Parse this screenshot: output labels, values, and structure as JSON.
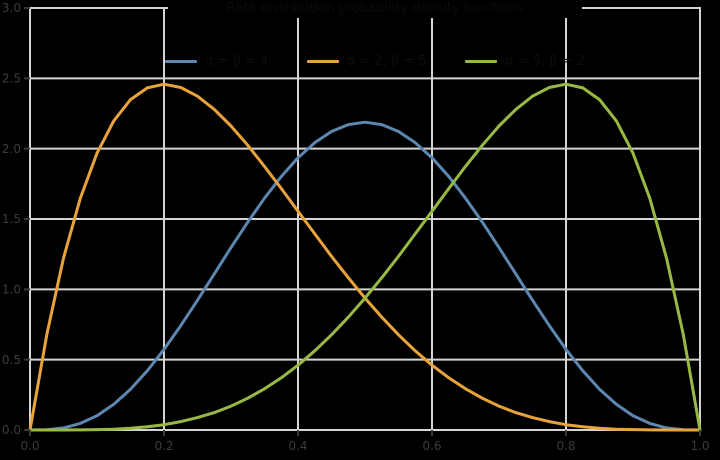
{
  "chart_data": {
    "type": "line",
    "title": "Beta distribution probability density functions",
    "xlabel": "",
    "ylabel": "",
    "xlim": [
      0,
      1
    ],
    "ylim": [
      0,
      3
    ],
    "xtick_labels": [
      "0.0",
      "0.2",
      "0.4",
      "0.6",
      "0.8",
      "1.0"
    ],
    "ytick_labels": [
      "0.0",
      "0.5",
      "1.0",
      "1.5",
      "2.0",
      "2.5",
      "3.0"
    ],
    "grid": true,
    "legend_position": "top-center",
    "colors": {
      "background": "#000000",
      "grid": "#d4d4d4",
      "border": "#d4d4d4",
      "tick": "#3b3b3b",
      "tick_label_text": "#3b3b3b",
      "title_text": "#0b0b0b",
      "legend_text": "#0d0d0d"
    },
    "x": [
      0,
      0.025,
      0.05,
      0.075,
      0.1,
      0.125,
      0.15,
      0.175,
      0.2,
      0.225,
      0.25,
      0.275,
      0.3,
      0.325,
      0.35,
      0.375,
      0.4,
      0.425,
      0.45,
      0.475,
      0.5,
      0.525,
      0.55,
      0.575,
      0.6,
      0.625,
      0.65,
      0.675,
      0.7,
      0.725,
      0.75,
      0.775,
      0.8,
      0.825,
      0.85,
      0.875,
      0.9,
      0.925,
      0.95,
      0.975,
      1
    ],
    "series": [
      {
        "name": "α = β = 4",
        "color": "#5d87b0",
        "values": [
          0,
          0.002,
          0.015,
          0.047,
          0.102,
          0.183,
          0.29,
          0.421,
          0.573,
          0.742,
          0.923,
          1.11,
          1.297,
          1.478,
          1.648,
          1.802,
          1.935,
          2.043,
          2.122,
          2.171,
          2.188,
          2.171,
          2.122,
          2.043,
          1.935,
          1.802,
          1.648,
          1.478,
          1.297,
          1.11,
          0.923,
          0.742,
          0.573,
          0.421,
          0.29,
          0.183,
          0.102,
          0.047,
          0.015,
          0.002,
          0
        ]
      },
      {
        "name": "α = 2, β = 5",
        "color": "#e8a33b",
        "values": [
          0,
          0.678,
          1.222,
          1.647,
          1.968,
          2.198,
          2.349,
          2.432,
          2.458,
          2.435,
          2.373,
          2.279,
          2.161,
          2.024,
          1.874,
          1.717,
          1.555,
          1.394,
          1.235,
          1.083,
          0.938,
          0.802,
          0.677,
          0.563,
          0.461,
          0.371,
          0.293,
          0.226,
          0.17,
          0.124,
          0.088,
          0.06,
          0.038,
          0.023,
          0.013,
          0.006,
          0.003,
          0.001,
          0,
          0,
          0
        ]
      },
      {
        "name": "α = 5, β = 2",
        "color": "#98ba44",
        "values": [
          0,
          0,
          0,
          0.001,
          0.003,
          0.006,
          0.013,
          0.023,
          0.038,
          0.06,
          0.088,
          0.124,
          0.17,
          0.226,
          0.293,
          0.371,
          0.461,
          0.563,
          0.677,
          0.802,
          0.938,
          1.083,
          1.235,
          1.394,
          1.555,
          1.717,
          1.874,
          2.024,
          2.161,
          2.279,
          2.373,
          2.435,
          2.458,
          2.432,
          2.349,
          2.198,
          1.968,
          1.647,
          1.222,
          0.678,
          0
        ]
      }
    ]
  }
}
